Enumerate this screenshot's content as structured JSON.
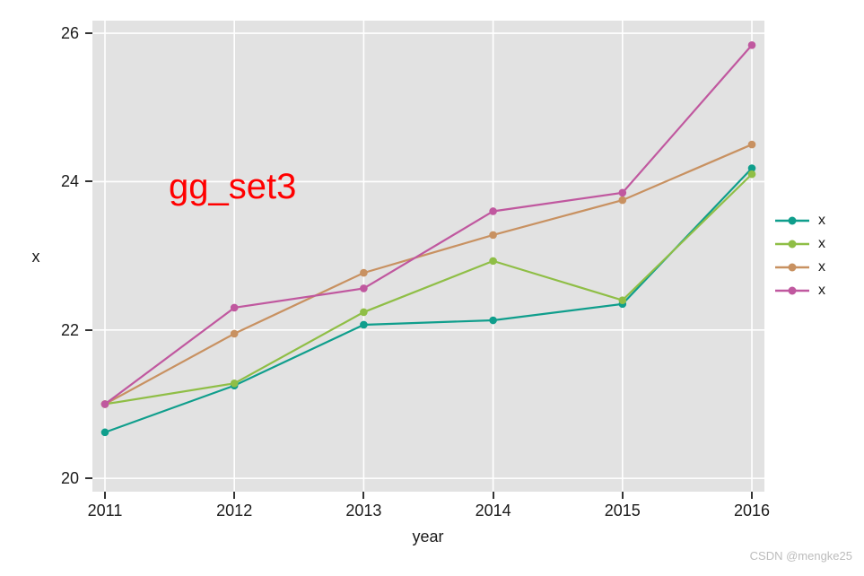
{
  "annotation": {
    "text": "gg_set3",
    "color": "#FF0000"
  },
  "watermark": {
    "text": "CSDN @mengke25",
    "color": "#BCBCBC"
  },
  "chart_data": {
    "type": "line",
    "title": "",
    "xlabel": "year",
    "ylabel": "x",
    "x": [
      2011,
      2012,
      2013,
      2014,
      2015,
      2016
    ],
    "x_tick_labels": [
      "2011",
      "2012",
      "2013",
      "2014",
      "2015",
      "2016"
    ],
    "y_tick_values": [
      20,
      22,
      24,
      26
    ],
    "y_tick_labels": [
      "20",
      "22",
      "24",
      "26"
    ],
    "xlim": [
      2010.903,
      2016.097
    ],
    "ylim": [
      19.82,
      26.17
    ],
    "grid": "major-only-white",
    "legend_position": "right",
    "panel_bg": "#E2E2E2",
    "grid_color": "#FFFFFF",
    "marker": "circle",
    "series": [
      {
        "name": "x",
        "color": "#0F9E8C",
        "values": [
          20.62,
          21.25,
          22.07,
          22.13,
          22.35,
          24.18
        ]
      },
      {
        "name": "x",
        "color": "#8FBE46",
        "values": [
          21.0,
          21.28,
          22.24,
          22.93,
          22.4,
          24.1
        ]
      },
      {
        "name": "x",
        "color": "#C89161",
        "values": [
          21.0,
          21.95,
          22.77,
          23.28,
          23.75,
          24.5
        ]
      },
      {
        "name": "x",
        "color": "#C0589F",
        "values": [
          21.0,
          22.3,
          22.56,
          23.6,
          23.85,
          25.84
        ]
      }
    ],
    "annotations": [
      {
        "text": "gg_set3",
        "x": 2012.0,
        "y": 23.95,
        "color": "#FF0000"
      }
    ]
  }
}
